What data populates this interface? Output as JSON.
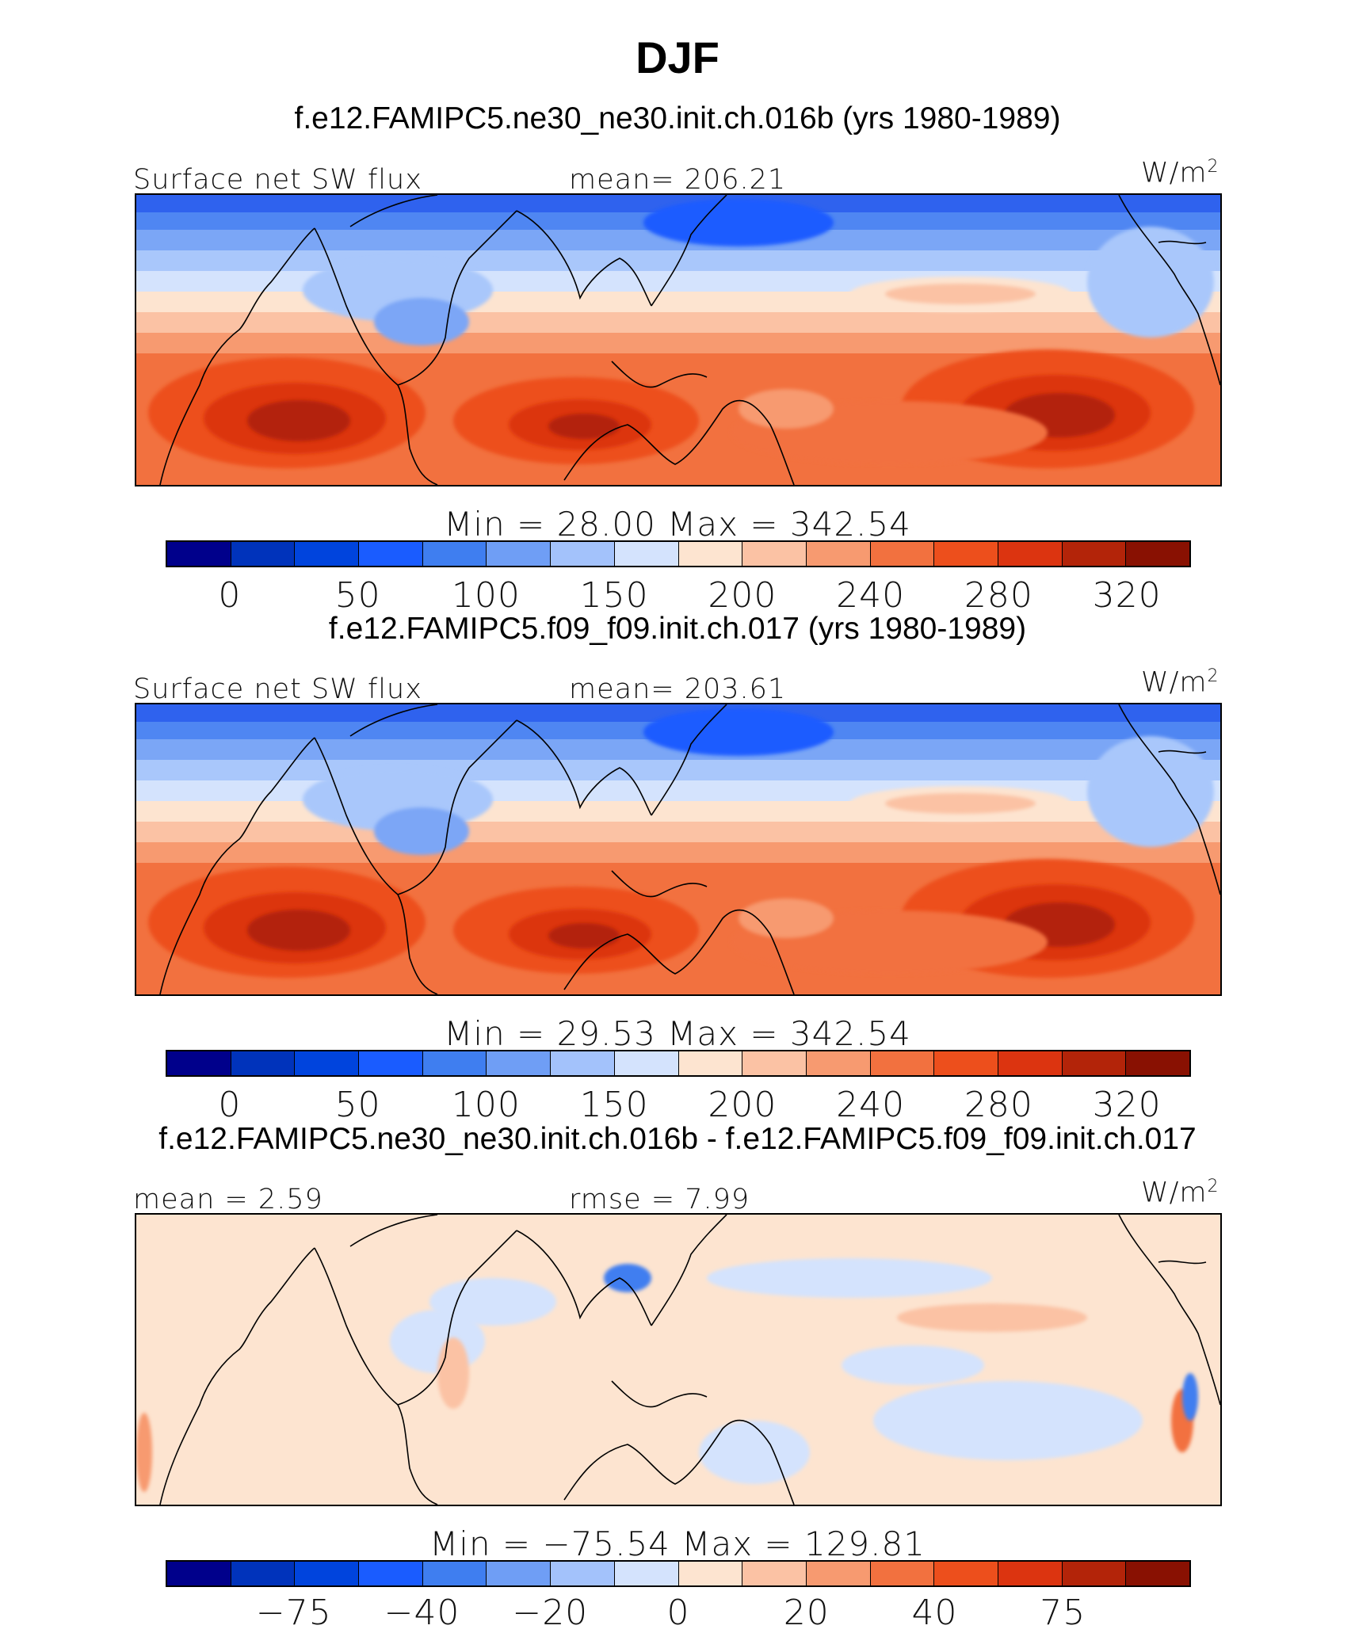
{
  "title": "DJF",
  "panels": [
    {
      "case": "f.e12.FAMIPC5.ne30_ne30.init.ch.016b (yrs 1980-1989)",
      "variable": "Surface net SW flux",
      "stat_left": "",
      "stat_right": "mean= 206.21",
      "unit": "W/m",
      "unit_sup": "2",
      "minmax": "Min =   28.00  Max  =  342.54",
      "colorbar": {
        "colors": [
          "#00008b",
          "#0033bb",
          "#0044dd",
          "#1a5cff",
          "#3f7ef0",
          "#6f9ef5",
          "#a3c2fb",
          "#d4e3fd",
          "#fde4d0",
          "#fbc2a4",
          "#f79a70",
          "#f2713f",
          "#ed4f1c",
          "#dc3410",
          "#b32409",
          "#891102"
        ],
        "ticks": [
          {
            "label": "0",
            "boundary": 1
          },
          {
            "label": "50",
            "boundary": 3
          },
          {
            "label": "100",
            "boundary": 5
          },
          {
            "label": "150",
            "boundary": 7
          },
          {
            "label": "200",
            "boundary": 9
          },
          {
            "label": "240",
            "boundary": 11
          },
          {
            "label": "280",
            "boundary": 13
          },
          {
            "label": "320",
            "boundary": 15
          }
        ]
      },
      "field": "abs"
    },
    {
      "case": "f.e12.FAMIPC5.f09_f09.init.ch.017 (yrs 1980-1989)",
      "variable": "Surface net SW flux",
      "stat_left": "",
      "stat_right": "mean= 203.61",
      "unit": "W/m",
      "unit_sup": "2",
      "minmax": "Min =   29.53  Max  =  342.54",
      "colorbar": {
        "colors": [
          "#00008b",
          "#0033bb",
          "#0044dd",
          "#1a5cff",
          "#3f7ef0",
          "#6f9ef5",
          "#a3c2fb",
          "#d4e3fd",
          "#fde4d0",
          "#fbc2a4",
          "#f79a70",
          "#f2713f",
          "#ed4f1c",
          "#dc3410",
          "#b32409",
          "#891102"
        ],
        "ticks": [
          {
            "label": "0",
            "boundary": 1
          },
          {
            "label": "50",
            "boundary": 3
          },
          {
            "label": "100",
            "boundary": 5
          },
          {
            "label": "150",
            "boundary": 7
          },
          {
            "label": "200",
            "boundary": 9
          },
          {
            "label": "240",
            "boundary": 11
          },
          {
            "label": "280",
            "boundary": 13
          },
          {
            "label": "320",
            "boundary": 15
          }
        ]
      },
      "field": "abs"
    },
    {
      "case": "f.e12.FAMIPC5.ne30_ne30.init.ch.016b - f.e12.FAMIPC5.f09_f09.init.ch.017",
      "variable": "",
      "stat_left": "mean =    2.59",
      "stat_right": "rmse =    7.99",
      "unit": "W/m",
      "unit_sup": "2",
      "minmax": "Min = −75.54  Max  =  129.81",
      "colorbar": {
        "colors": [
          "#00008b",
          "#0033bb",
          "#0044dd",
          "#1a5cff",
          "#3f7ef0",
          "#6f9ef5",
          "#a3c2fb",
          "#d4e3fd",
          "#fde4d0",
          "#fbc2a4",
          "#f79a70",
          "#f2713f",
          "#ed4f1c",
          "#dc3410",
          "#b32409",
          "#891102"
        ],
        "ticks": [
          {
            "label": "−75",
            "boundary": 2
          },
          {
            "label": "−40",
            "boundary": 4
          },
          {
            "label": "−20",
            "boundary": 6
          },
          {
            "label": "0",
            "boundary": 8
          },
          {
            "label": "20",
            "boundary": 10
          },
          {
            "label": "40",
            "boundary": 12
          },
          {
            "label": "75",
            "boundary": 14
          }
        ]
      },
      "field": "diff"
    }
  ]
}
